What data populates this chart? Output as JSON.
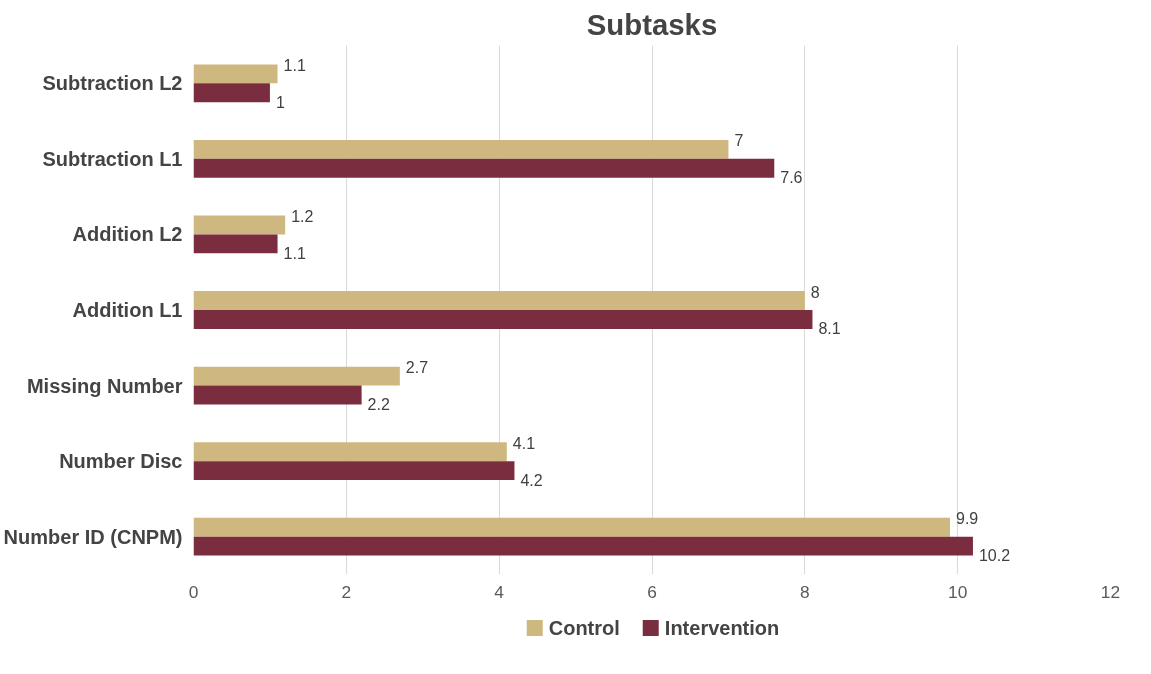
{
  "chart_data": {
    "type": "bar",
    "orientation": "horizontal",
    "title": "Subtasks",
    "categories": [
      "Subtraction L2",
      "Subtraction L1",
      "Addition L2",
      "Addition L1",
      "Missing Number",
      "Number Disc",
      "Number ID (CNPM)"
    ],
    "series": [
      {
        "name": "Control",
        "color": "#cfb87f",
        "values": [
          1.1,
          7,
          1.2,
          8,
          2.7,
          4.1,
          9.9
        ]
      },
      {
        "name": "Intervention",
        "color": "#7b2d40",
        "values": [
          1,
          7.6,
          1.1,
          8.1,
          2.2,
          4.2,
          10.2
        ]
      }
    ],
    "xlim": [
      0,
      12
    ],
    "xticks": [
      0,
      2,
      4,
      6,
      8,
      10,
      12
    ],
    "grid": "x",
    "legend": "bottom",
    "data_labels": true
  }
}
